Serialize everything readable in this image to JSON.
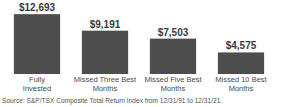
{
  "chart_data": {
    "type": "bar",
    "categories": [
      "Fully Invested",
      "Missed Three Best Months",
      "Missed Five Best Months",
      "Missed 10 Best Months"
    ],
    "values": [
      12693,
      9191,
      7503,
      4575
    ],
    "value_labels": [
      "$12,693",
      "$9,191",
      "$7,503",
      "$4,575"
    ],
    "data_labels": true,
    "color": "#4d4d4d",
    "ylim": [
      0,
      14000
    ],
    "tick_labels": "x",
    "grid": false,
    "annotations": [
      "Source: S&P/TSX Composite Total Return Index from 12/31/91 to 12/31/21."
    ]
  }
}
